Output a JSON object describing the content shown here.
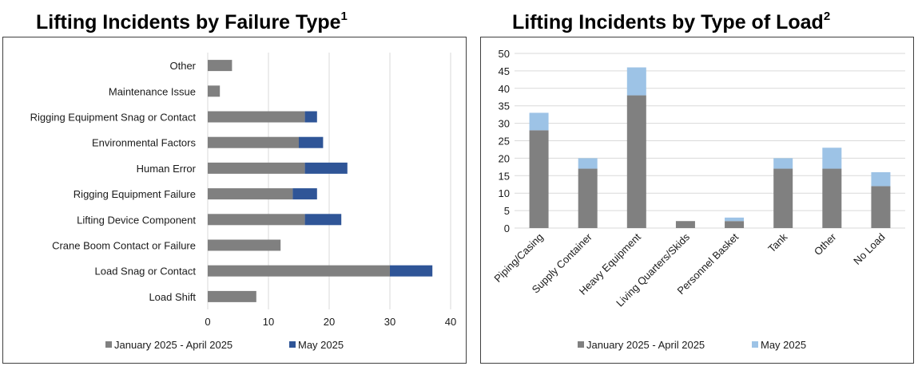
{
  "charts": [
    {
      "id": "failure-type",
      "title": "Lifting Incidents by Failure Type",
      "footnote": "1",
      "chart_data": {
        "type": "bar",
        "orientation": "horizontal",
        "stacked": true,
        "categories": [
          "Other",
          "Maintenance Issue",
          "Rigging Equipment Snag or Contact",
          "Environmental Factors",
          "Human Error",
          "Rigging Equipment Failure",
          "Lifting Device Component",
          "Crane Boom Contact or Failure",
          "Load Snag or Contact",
          "Load Shift"
        ],
        "series": [
          {
            "name": "January 2025 - April 2025",
            "color": "#808080",
            "values": [
              4,
              2,
              16,
              15,
              16,
              14,
              16,
              12,
              30,
              8
            ]
          },
          {
            "name": "May 2025",
            "color": "#2f5597",
            "values": [
              0,
              0,
              2,
              4,
              7,
              4,
              6,
              0,
              7,
              0
            ]
          }
        ],
        "xlim": [
          0,
          40
        ],
        "xticks": [
          0,
          10,
          20,
          30,
          40
        ],
        "grid": true,
        "legend": "bottom"
      }
    },
    {
      "id": "load-type",
      "title": "Lifting Incidents by Type of Load",
      "footnote": "2",
      "chart_data": {
        "type": "bar",
        "orientation": "vertical",
        "stacked": true,
        "categories": [
          "Piping/Casing",
          "Supply Container",
          "Heavy Equipment",
          "Living Quarters/Skids",
          "Personnel Basket",
          "Tank",
          "Other",
          "No Load"
        ],
        "series": [
          {
            "name": "January 2025 - April 2025",
            "color": "#808080",
            "values": [
              28,
              17,
              38,
              2,
              2,
              17,
              17,
              12
            ]
          },
          {
            "name": "May 2025",
            "color": "#9dc3e6",
            "values": [
              5,
              3,
              8,
              0,
              1,
              3,
              6,
              4
            ]
          }
        ],
        "ylim": [
          0,
          50
        ],
        "yticks": [
          0,
          5,
          10,
          15,
          20,
          25,
          30,
          35,
          40,
          45,
          50
        ],
        "grid": true,
        "legend": "bottom"
      }
    }
  ]
}
